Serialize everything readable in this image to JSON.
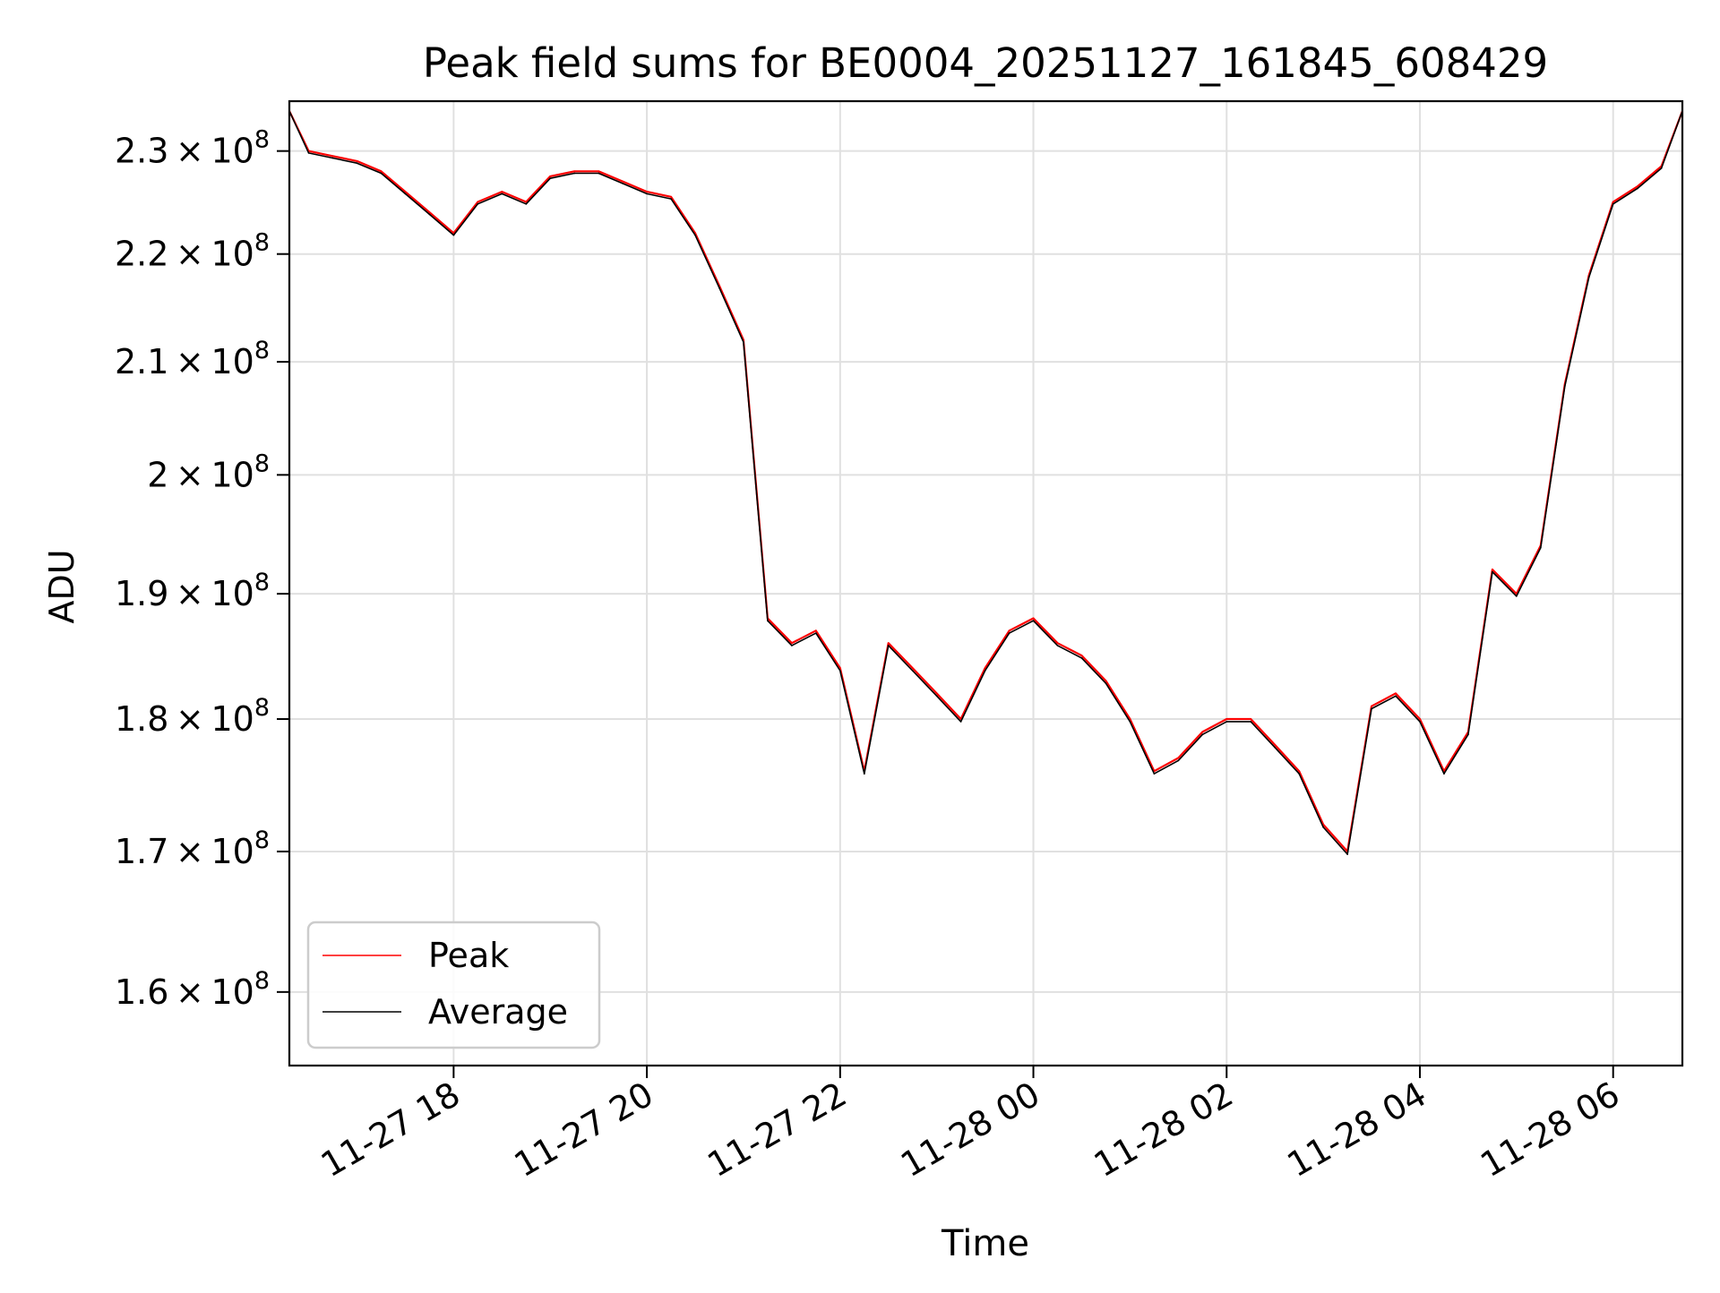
{
  "chart_data": {
    "type": "line",
    "title": "Peak field sums for BE0004_20251127_161845_608429",
    "xlabel": "Time",
    "ylabel": "ADU",
    "y_scale": "log",
    "grid": true,
    "legend_position": "lower-left",
    "xlim": [
      "2025-11-27 16:18",
      "2025-11-28 06:43"
    ],
    "ylim": [
      155000000,
      235000000
    ],
    "x_ticks": [
      {
        "value": "2025-11-27 18:00",
        "label": "11-27 18"
      },
      {
        "value": "2025-11-27 20:00",
        "label": "11-27 20"
      },
      {
        "value": "2025-11-27 22:00",
        "label": "11-27 22"
      },
      {
        "value": "2025-11-28 00:00",
        "label": "11-28 00"
      },
      {
        "value": "2025-11-28 02:00",
        "label": "11-28 02"
      },
      {
        "value": "2025-11-28 04:00",
        "label": "11-28 04"
      },
      {
        "value": "2025-11-28 06:00",
        "label": "11-28 06"
      }
    ],
    "y_ticks": [
      {
        "value": 160000000,
        "mantissa": "1.6",
        "exp": "8"
      },
      {
        "value": 170000000,
        "mantissa": "1.7",
        "exp": "8"
      },
      {
        "value": 180000000,
        "mantissa": "1.8",
        "exp": "8"
      },
      {
        "value": 190000000,
        "mantissa": "1.9",
        "exp": "8"
      },
      {
        "value": 200000000,
        "mantissa": "2",
        "exp": "8"
      },
      {
        "value": 210000000,
        "mantissa": "2.1",
        "exp": "8"
      },
      {
        "value": 220000000,
        "mantissa": "2.2",
        "exp": "8"
      },
      {
        "value": 230000000,
        "mantissa": "2.3",
        "exp": "8"
      }
    ],
    "series": [
      {
        "name": "Peak",
        "color": "#ff0000",
        "x": [
          "2025-11-27 16:18",
          "2025-11-27 16:30",
          "2025-11-27 16:45",
          "2025-11-27 17:00",
          "2025-11-27 17:15",
          "2025-11-27 17:30",
          "2025-11-27 17:45",
          "2025-11-27 18:00",
          "2025-11-27 18:15",
          "2025-11-27 18:30",
          "2025-11-27 18:45",
          "2025-11-27 19:00",
          "2025-11-27 19:15",
          "2025-11-27 19:30",
          "2025-11-27 19:45",
          "2025-11-27 20:00",
          "2025-11-27 20:15",
          "2025-11-27 20:30",
          "2025-11-27 20:45",
          "2025-11-27 21:00",
          "2025-11-27 21:15",
          "2025-11-27 21:30",
          "2025-11-27 21:45",
          "2025-11-27 22:00",
          "2025-11-27 22:15",
          "2025-11-27 22:30",
          "2025-11-27 22:45",
          "2025-11-27 23:00",
          "2025-11-27 23:15",
          "2025-11-27 23:30",
          "2025-11-27 23:45",
          "2025-11-28 00:00",
          "2025-11-28 00:15",
          "2025-11-28 00:30",
          "2025-11-28 00:45",
          "2025-11-28 01:00",
          "2025-11-28 01:15",
          "2025-11-28 01:30",
          "2025-11-28 01:45",
          "2025-11-28 02:00",
          "2025-11-28 02:15",
          "2025-11-28 02:30",
          "2025-11-28 02:45",
          "2025-11-28 03:00",
          "2025-11-28 03:15",
          "2025-11-28 03:30",
          "2025-11-28 03:45",
          "2025-11-28 04:00",
          "2025-11-28 04:15",
          "2025-11-28 04:30",
          "2025-11-28 04:45",
          "2025-11-28 05:00",
          "2025-11-28 05:15",
          "2025-11-28 05:30",
          "2025-11-28 05:45",
          "2025-11-28 06:00",
          "2025-11-28 06:15",
          "2025-11-28 06:30",
          "2025-11-28 06:43"
        ],
        "values": [
          234000000,
          230000000,
          229500000,
          229000000,
          228000000,
          226000000,
          224000000,
          222000000,
          225000000,
          226000000,
          225000000,
          227500000,
          228000000,
          228000000,
          227000000,
          226000000,
          225500000,
          222000000,
          217000000,
          212000000,
          188000000,
          186000000,
          187000000,
          184000000,
          176000000,
          186000000,
          184000000,
          182000000,
          180000000,
          184000000,
          187000000,
          188000000,
          186000000,
          185000000,
          183000000,
          180000000,
          176000000,
          177000000,
          179000000,
          180000000,
          180000000,
          178000000,
          176000000,
          172000000,
          170000000,
          181000000,
          182000000,
          180000000,
          176000000,
          179000000,
          192000000,
          190000000,
          194000000,
          208000000,
          218000000,
          225000000,
          226500000,
          228500000,
          234000000
        ]
      },
      {
        "name": "Average",
        "color": "#000000",
        "x": [
          "2025-11-27 16:18",
          "2025-11-27 16:30",
          "2025-11-27 16:45",
          "2025-11-27 17:00",
          "2025-11-27 17:15",
          "2025-11-27 17:30",
          "2025-11-27 17:45",
          "2025-11-27 18:00",
          "2025-11-27 18:15",
          "2025-11-27 18:30",
          "2025-11-27 18:45",
          "2025-11-27 19:00",
          "2025-11-27 19:15",
          "2025-11-27 19:30",
          "2025-11-27 19:45",
          "2025-11-27 20:00",
          "2025-11-27 20:15",
          "2025-11-27 20:30",
          "2025-11-27 20:45",
          "2025-11-27 21:00",
          "2025-11-27 21:15",
          "2025-11-27 21:30",
          "2025-11-27 21:45",
          "2025-11-27 22:00",
          "2025-11-27 22:15",
          "2025-11-27 22:30",
          "2025-11-27 22:45",
          "2025-11-27 23:00",
          "2025-11-27 23:15",
          "2025-11-27 23:30",
          "2025-11-27 23:45",
          "2025-11-28 00:00",
          "2025-11-28 00:15",
          "2025-11-28 00:30",
          "2025-11-28 00:45",
          "2025-11-28 01:00",
          "2025-11-28 01:15",
          "2025-11-28 01:30",
          "2025-11-28 01:45",
          "2025-11-28 02:00",
          "2025-11-28 02:15",
          "2025-11-28 02:30",
          "2025-11-28 02:45",
          "2025-11-28 03:00",
          "2025-11-28 03:15",
          "2025-11-28 03:30",
          "2025-11-28 03:45",
          "2025-11-28 04:00",
          "2025-11-28 04:15",
          "2025-11-28 04:30",
          "2025-11-28 04:45",
          "2025-11-28 05:00",
          "2025-11-28 05:15",
          "2025-11-28 05:30",
          "2025-11-28 05:45",
          "2025-11-28 06:00",
          "2025-11-28 06:15",
          "2025-11-28 06:30",
          "2025-11-28 06:43"
        ],
        "values": [
          234000000,
          229800000,
          229300000,
          228800000,
          227800000,
          225800000,
          223800000,
          221800000,
          224800000,
          225800000,
          224800000,
          227300000,
          227800000,
          227800000,
          226800000,
          225800000,
          225300000,
          221800000,
          216800000,
          211800000,
          187800000,
          185800000,
          186800000,
          183800000,
          175800000,
          185800000,
          183800000,
          181800000,
          179800000,
          183800000,
          186800000,
          187800000,
          185800000,
          184800000,
          182800000,
          179800000,
          175800000,
          176800000,
          178800000,
          179800000,
          179800000,
          177800000,
          175800000,
          171800000,
          169800000,
          180800000,
          181800000,
          179800000,
          175800000,
          178800000,
          191800000,
          189800000,
          193800000,
          207800000,
          217800000,
          224800000,
          226300000,
          228300000,
          234000000
        ]
      }
    ]
  }
}
